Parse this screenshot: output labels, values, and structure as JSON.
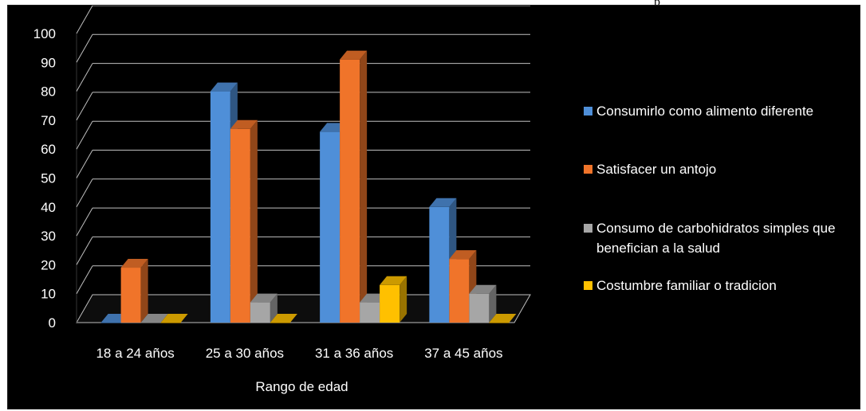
{
  "header_fragment": "p",
  "chart_data": {
    "type": "bar",
    "style": "3d-clustered",
    "categories": [
      "18 a 24 años",
      "25 a 30 años",
      "31 a 36 años",
      "37 a 45 años"
    ],
    "series": [
      {
        "name": "Consumirlo como alimento diferente",
        "color": "#4f8fd8",
        "values": [
          0,
          80,
          66,
          40
        ]
      },
      {
        "name": "Satisfacer un antojo",
        "color": "#f0742a",
        "values": [
          19,
          67,
          91,
          22
        ]
      },
      {
        "name": "Consumo de carbohidratos simples que benefician a la salud",
        "color": "#a6a6a6",
        "values": [
          0,
          7,
          7,
          10
        ]
      },
      {
        "name": "Costumbre familiar o tradicion",
        "color": "#ffc000",
        "values": [
          0,
          0,
          13,
          0
        ]
      }
    ],
    "xlabel": "Rango de edad",
    "ylabel": "",
    "ylim": [
      0,
      100
    ],
    "yticks": [
      "0",
      "10",
      "20",
      "30",
      "40",
      "50",
      "60",
      "70",
      "80",
      "90",
      "100"
    ],
    "grid": true,
    "legend_position": "right",
    "background": "#000000"
  }
}
